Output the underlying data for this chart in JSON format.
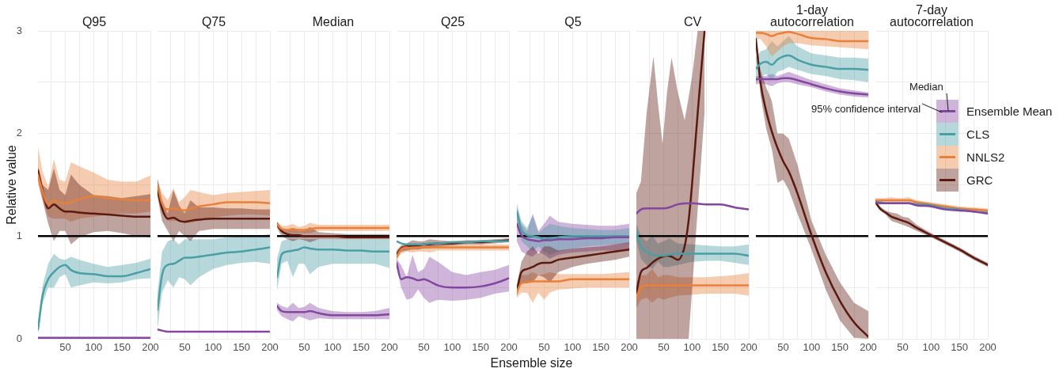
{
  "chart_data": [
    {
      "type": "line",
      "title": "Q95",
      "ylabel": "Relative value",
      "x": [
        2,
        10,
        20,
        30,
        40,
        50,
        60,
        75,
        100,
        125,
        150,
        175,
        200
      ],
      "xlim": [
        2,
        200
      ],
      "xticks": [
        {
          "value": 25,
          "label": null
        },
        50,
        {
          "value": 75,
          "label": null
        },
        100,
        {
          "value": 125,
          "label": null
        },
        150,
        {
          "value": 175,
          "label": null
        },
        200
      ],
      "ylim": [
        0,
        3
      ],
      "yticks": [
        0,
        {
          "value": 0.5,
          "label": null
        },
        1,
        {
          "value": 1.5,
          "label": null
        },
        2,
        {
          "value": 2.5,
          "label": null
        },
        3
      ],
      "grid": true,
      "ref_lines": [
        {
          "axis": "y",
          "value": 1,
          "color": "#000000"
        }
      ],
      "series": [
        {
          "color": "#8447a0",
          "values": [
            0.01,
            0.01,
            0.01,
            0.01,
            0.01,
            0.01,
            0.01,
            0.01,
            0.01,
            0.01,
            0.01,
            0.01,
            0.01
          ]
        },
        {
          "color": "#4a9ea6",
          "values": [
            0.09,
            0.42,
            0.58,
            0.65,
            0.7,
            0.72,
            0.67,
            0.64,
            0.63,
            0.61,
            0.61,
            0.64,
            0.68
          ],
          "lower": [
            0.04,
            0.34,
            0.5,
            0.5,
            0.6,
            0.63,
            0.5,
            0.52,
            0.55,
            0.54,
            0.55,
            0.58,
            0.59
          ],
          "upper": [
            0.14,
            0.52,
            0.73,
            0.83,
            0.78,
            0.77,
            0.8,
            0.77,
            0.73,
            0.7,
            0.72,
            0.74,
            0.78
          ]
        },
        {
          "color": "#e8803a",
          "values": [
            1.6,
            1.44,
            1.31,
            1.35,
            1.33,
            1.32,
            1.33,
            1.36,
            1.39,
            1.37,
            1.36,
            1.35,
            1.35
          ],
          "lower": [
            1.5,
            1.35,
            1.19,
            1.17,
            1.17,
            1.17,
            1.14,
            1.17,
            1.19,
            1.21,
            1.22,
            1.22,
            1.24
          ],
          "upper": [
            1.87,
            1.63,
            1.48,
            1.75,
            1.55,
            1.53,
            1.72,
            1.68,
            1.62,
            1.55,
            1.53,
            1.53,
            1.59
          ]
        },
        {
          "color": "#5c1a0f",
          "values": [
            1.64,
            1.45,
            1.27,
            1.31,
            1.27,
            1.24,
            1.24,
            1.23,
            1.22,
            1.21,
            1.2,
            1.19,
            1.19
          ],
          "lower": [
            1.55,
            1.35,
            1.12,
            0.95,
            1.05,
            1.05,
            0.92,
            0.99,
            1.04,
            1.05,
            1.03,
            1.0,
            0.99
          ],
          "upper": [
            1.68,
            1.5,
            1.45,
            1.66,
            1.45,
            1.4,
            1.6,
            1.5,
            1.4,
            1.39,
            1.37,
            1.39,
            1.41
          ]
        }
      ]
    },
    {
      "type": "line",
      "title": "Q75",
      "tick_labels": "x",
      "x": [
        2,
        10,
        20,
        30,
        40,
        50,
        60,
        75,
        100,
        125,
        150,
        175,
        200
      ],
      "xlim": [
        2,
        200
      ],
      "xticks": [
        {
          "value": 25,
          "label": null
        },
        50,
        {
          "value": 75,
          "label": null
        },
        100,
        {
          "value": 125,
          "label": null
        },
        150,
        {
          "value": 175,
          "label": null
        },
        200
      ],
      "ylim": [
        0,
        3
      ],
      "yticks": [
        0,
        {
          "value": 0.5,
          "label": null
        },
        1,
        {
          "value": 1.5,
          "label": null
        },
        2,
        {
          "value": 2.5,
          "label": null
        },
        3
      ],
      "grid": true,
      "ref_lines": [
        {
          "axis": "y",
          "value": 1,
          "color": "#000000"
        }
      ],
      "series": [
        {
          "color": "#8447a0",
          "values": [
            0.09,
            0.08,
            0.07,
            0.07,
            0.07,
            0.07,
            0.07,
            0.07,
            0.07,
            0.07,
            0.07,
            0.07,
            0.07
          ]
        },
        {
          "color": "#4a9ea6",
          "values": [
            0.28,
            0.62,
            0.72,
            0.73,
            0.76,
            0.79,
            0.79,
            0.8,
            0.82,
            0.84,
            0.85,
            0.87,
            0.89
          ],
          "lower": [
            0.1,
            0.45,
            0.57,
            0.5,
            0.6,
            0.58,
            0.52,
            0.6,
            0.68,
            0.72,
            0.74,
            0.75,
            0.73
          ],
          "upper": [
            0.45,
            0.85,
            0.95,
            0.97,
            0.92,
            0.97,
            0.97,
            0.97,
            0.97,
            0.99,
            1.0,
            1.0,
            1.02
          ]
        },
        {
          "color": "#e8803a",
          "values": [
            1.5,
            1.32,
            1.26,
            1.27,
            1.26,
            1.25,
            1.27,
            1.29,
            1.31,
            1.33,
            1.33,
            1.33,
            1.32
          ],
          "lower": [
            1.4,
            1.22,
            1.15,
            1.15,
            1.15,
            1.13,
            1.13,
            1.15,
            1.18,
            1.2,
            1.21,
            1.21,
            1.2
          ],
          "upper": [
            1.55,
            1.42,
            1.35,
            1.47,
            1.33,
            1.38,
            1.45,
            1.43,
            1.4,
            1.42,
            1.43,
            1.44,
            1.45
          ]
        },
        {
          "color": "#5c1a0f",
          "values": [
            1.45,
            1.27,
            1.17,
            1.18,
            1.15,
            1.14,
            1.15,
            1.16,
            1.17,
            1.17,
            1.17,
            1.17,
            1.17
          ],
          "lower": [
            1.38,
            1.15,
            1.05,
            0.95,
            1.05,
            1.0,
            0.95,
            1.05,
            1.07,
            1.07,
            1.07,
            1.07,
            1.07
          ],
          "upper": [
            1.56,
            1.35,
            1.22,
            1.45,
            1.3,
            1.22,
            1.35,
            1.28,
            1.28,
            1.27,
            1.27,
            1.26,
            1.26
          ]
        }
      ]
    },
    {
      "type": "line",
      "title": "Median",
      "tick_labels": "x",
      "x": [
        2,
        10,
        20,
        30,
        40,
        50,
        60,
        75,
        100,
        125,
        150,
        175,
        200
      ],
      "xlim": [
        2,
        200
      ],
      "xticks": [
        {
          "value": 25,
          "label": null
        },
        50,
        {
          "value": 75,
          "label": null
        },
        100,
        {
          "value": 125,
          "label": null
        },
        150,
        {
          "value": 175,
          "label": null
        },
        200
      ],
      "ylim": [
        0,
        3
      ],
      "yticks": [
        0,
        {
          "value": 0.5,
          "label": null
        },
        1,
        {
          "value": 1.5,
          "label": null
        },
        2,
        {
          "value": 2.5,
          "label": null
        },
        3
      ],
      "grid": true,
      "ref_lines": [
        {
          "axis": "y",
          "value": 1,
          "color": "#000000"
        }
      ],
      "series": [
        {
          "color": "#8447a0",
          "values": [
            0.32,
            0.27,
            0.26,
            0.26,
            0.26,
            0.26,
            0.27,
            0.25,
            0.23,
            0.23,
            0.23,
            0.23,
            0.24
          ],
          "lower": [
            0.28,
            0.22,
            0.19,
            0.17,
            0.22,
            0.2,
            0.18,
            0.2,
            0.19,
            0.19,
            0.19,
            0.19,
            0.19
          ],
          "upper": [
            0.35,
            0.32,
            0.3,
            0.35,
            0.3,
            0.31,
            0.35,
            0.3,
            0.27,
            0.26,
            0.26,
            0.27,
            0.3
          ]
        },
        {
          "color": "#4a9ea6",
          "values": [
            0.6,
            0.82,
            0.85,
            0.86,
            0.87,
            0.89,
            0.88,
            0.87,
            0.87,
            0.86,
            0.86,
            0.85,
            0.85
          ],
          "lower": [
            0.47,
            0.73,
            0.76,
            0.6,
            0.73,
            0.73,
            0.63,
            0.7,
            0.73,
            0.73,
            0.73,
            0.73,
            0.69
          ],
          "upper": [
            0.78,
            0.95,
            0.97,
            0.97,
            0.97,
            0.97,
            0.97,
            0.97,
            0.97,
            0.97,
            0.97,
            0.97,
            0.97
          ]
        },
        {
          "color": "#e8803a",
          "values": [
            1.12,
            1.07,
            1.06,
            1.07,
            1.06,
            1.06,
            1.07,
            1.08,
            1.08,
            1.08,
            1.08,
            1.08,
            1.08
          ],
          "lower": [
            1.09,
            1.04,
            1.03,
            1.03,
            1.03,
            1.03,
            1.03,
            1.05,
            1.05,
            1.05,
            1.05,
            1.05,
            1.05
          ],
          "upper": [
            1.14,
            1.1,
            1.1,
            1.12,
            1.09,
            1.1,
            1.13,
            1.11,
            1.11,
            1.11,
            1.11,
            1.11,
            1.11
          ]
        },
        {
          "color": "#5c1a0f",
          "values": [
            1.12,
            1.05,
            1.02,
            1.01,
            1.01,
            1.0,
            1.0,
            1.0,
            1.0,
            0.99,
            0.99,
            0.99,
            0.99
          ],
          "lower": [
            1.08,
            1.0,
            0.97,
            0.95,
            0.97,
            0.96,
            0.94,
            0.97,
            0.97,
            0.97,
            0.97,
            0.97,
            0.97
          ],
          "upper": [
            1.14,
            1.08,
            1.06,
            1.08,
            1.05,
            1.05,
            1.09,
            1.04,
            1.03,
            1.02,
            1.02,
            1.02,
            1.02
          ]
        }
      ]
    },
    {
      "type": "line",
      "title": "Q25",
      "tick_labels": "x",
      "x": [
        2,
        10,
        20,
        30,
        40,
        50,
        60,
        75,
        100,
        125,
        150,
        175,
        200
      ],
      "xlim": [
        2,
        200
      ],
      "xticks": [
        {
          "value": 25,
          "label": null
        },
        50,
        {
          "value": 75,
          "label": null
        },
        100,
        {
          "value": 125,
          "label": null
        },
        150,
        {
          "value": 175,
          "label": null
        },
        200
      ],
      "ylim": [
        0,
        3
      ],
      "yticks": [
        0,
        {
          "value": 0.5,
          "label": null
        },
        1,
        {
          "value": 1.5,
          "label": null
        },
        2,
        {
          "value": 2.5,
          "label": null
        },
        3
      ],
      "grid": true,
      "ref_lines": [
        {
          "axis": "y",
          "value": 1,
          "color": "#000000"
        }
      ],
      "series": [
        {
          "color": "#8447a0",
          "values": [
            0.74,
            0.58,
            0.6,
            0.59,
            0.57,
            0.58,
            0.56,
            0.52,
            0.5,
            0.5,
            0.51,
            0.54,
            0.59
          ],
          "lower": [
            0.7,
            0.5,
            0.38,
            0.4,
            0.48,
            0.4,
            0.35,
            0.38,
            0.37,
            0.38,
            0.4,
            0.44,
            0.46
          ],
          "upper": [
            0.78,
            0.72,
            0.6,
            0.82,
            0.65,
            0.68,
            0.8,
            0.75,
            0.65,
            0.62,
            0.65,
            0.67,
            0.72
          ]
        },
        {
          "color": "#4a9ea6",
          "values": [
            0.95,
            0.93,
            0.92,
            0.92,
            0.92,
            0.92,
            0.93,
            0.93,
            0.94,
            0.94,
            0.95,
            0.95,
            0.95
          ]
        },
        {
          "color": "#e8803a",
          "values": [
            0.8,
            0.87,
            0.89,
            0.88,
            0.89,
            0.89,
            0.89,
            0.89,
            0.89,
            0.89,
            0.89,
            0.89,
            0.89
          ],
          "lower": [
            0.76,
            0.83,
            0.85,
            0.84,
            0.85,
            0.85,
            0.84,
            0.86,
            0.86,
            0.86,
            0.86,
            0.86,
            0.86
          ],
          "upper": [
            0.84,
            0.9,
            0.92,
            0.92,
            0.92,
            0.92,
            0.93,
            0.92,
            0.92,
            0.92,
            0.92,
            0.92,
            0.92
          ]
        },
        {
          "color": "#5c1a0f",
          "values": [
            0.82,
            0.88,
            0.9,
            0.91,
            0.91,
            0.92,
            0.92,
            0.93,
            0.93,
            0.94,
            0.94,
            0.95,
            0.96
          ],
          "lower": [
            0.78,
            0.85,
            0.86,
            0.87,
            0.87,
            0.88,
            0.88,
            0.9,
            0.91,
            0.92,
            0.92,
            0.93,
            0.94
          ],
          "upper": [
            0.86,
            0.91,
            0.93,
            0.96,
            0.95,
            0.95,
            0.97,
            0.96,
            0.95,
            0.96,
            0.96,
            0.97,
            0.98
          ]
        }
      ]
    },
    {
      "type": "line",
      "title": "Q5",
      "xlabel": "Ensemble size",
      "tick_labels": "x",
      "x": [
        2,
        10,
        20,
        30,
        40,
        50,
        60,
        75,
        100,
        125,
        150,
        175,
        200
      ],
      "xlim": [
        2,
        200
      ],
      "xticks": [
        {
          "value": 25,
          "label": null
        },
        50,
        {
          "value": 75,
          "label": null
        },
        100,
        {
          "value": 125,
          "label": null
        },
        150,
        {
          "value": 175,
          "label": null
        },
        200
      ],
      "ylim": [
        0,
        3
      ],
      "yticks": [
        0,
        {
          "value": 0.5,
          "label": null
        },
        1,
        {
          "value": 1.5,
          "label": null
        },
        2,
        {
          "value": 2.5,
          "label": null
        },
        3
      ],
      "grid": true,
      "ref_lines": [
        {
          "axis": "y",
          "value": 1,
          "color": "#000000"
        }
      ],
      "series": [
        {
          "color": "#8447a0",
          "values": [
            1.12,
            1.01,
            0.97,
            0.96,
            0.95,
            0.96,
            0.96,
            0.97,
            0.97,
            0.98,
            0.98,
            0.99,
            0.99
          ],
          "lower": [
            0.95,
            0.85,
            0.82,
            0.8,
            0.85,
            0.82,
            0.78,
            0.82,
            0.84,
            0.85,
            0.86,
            0.86,
            0.86
          ],
          "upper": [
            1.28,
            1.12,
            1.05,
            1.22,
            1.05,
            1.12,
            1.2,
            1.14,
            1.12,
            1.11,
            1.1,
            1.1,
            1.12
          ]
        },
        {
          "color": "#4a9ea6",
          "values": [
            1.24,
            1.06,
            1.01,
            1.0,
            0.99,
            0.97,
            0.98,
            0.99,
            1.0,
            1.0,
            1.0,
            1.0,
            1.0
          ],
          "lower": [
            1.15,
            0.95,
            0.9,
            0.85,
            0.9,
            0.85,
            0.82,
            0.85,
            0.88,
            0.9,
            0.91,
            0.92,
            0.93
          ],
          "upper": [
            1.32,
            1.15,
            1.08,
            1.2,
            1.03,
            1.08,
            1.12,
            1.1,
            1.08,
            1.07,
            1.06,
            1.06,
            1.08
          ]
        },
        {
          "color": "#e8803a",
          "values": [
            0.46,
            0.54,
            0.55,
            0.56,
            0.56,
            0.56,
            0.56,
            0.56,
            0.58,
            0.58,
            0.58,
            0.58,
            0.58
          ],
          "lower": [
            0.4,
            0.45,
            0.45,
            0.35,
            0.45,
            0.38,
            0.45,
            0.48,
            0.49,
            0.5,
            0.5,
            0.5,
            0.5
          ],
          "upper": [
            0.5,
            0.62,
            0.62,
            0.65,
            0.62,
            0.63,
            0.65,
            0.63,
            0.63,
            0.63,
            0.63,
            0.64,
            0.65
          ]
        },
        {
          "color": "#5c1a0f",
          "values": [
            0.47,
            0.65,
            0.68,
            0.7,
            0.73,
            0.74,
            0.74,
            0.77,
            0.79,
            0.81,
            0.83,
            0.85,
            0.87
          ],
          "lower": [
            0.42,
            0.55,
            0.55,
            0.55,
            0.62,
            0.6,
            0.55,
            0.65,
            0.7,
            0.73,
            0.75,
            0.77,
            0.8
          ],
          "upper": [
            0.52,
            0.75,
            0.85,
            0.9,
            0.83,
            0.9,
            0.9,
            0.86,
            0.88,
            0.89,
            0.9,
            0.92,
            0.94
          ]
        }
      ]
    },
    {
      "type": "line",
      "title": "CV",
      "tick_labels": "x",
      "x": [
        2,
        10,
        20,
        30,
        40,
        50,
        60,
        75,
        100,
        125,
        150,
        175,
        200
      ],
      "xlim": [
        2,
        200
      ],
      "xticks": [
        {
          "value": 25,
          "label": null
        },
        50,
        {
          "value": 75,
          "label": null
        },
        100,
        {
          "value": 125,
          "label": null
        },
        150,
        {
          "value": 175,
          "label": null
        },
        200
      ],
      "ylim": [
        0,
        3
      ],
      "yticks": [
        0,
        {
          "value": 0.5,
          "label": null
        },
        1,
        {
          "value": 1.5,
          "label": null
        },
        2,
        {
          "value": 2.5,
          "label": null
        },
        3
      ],
      "grid": true,
      "ref_lines": [
        {
          "axis": "y",
          "value": 1,
          "color": "#000000"
        }
      ],
      "series": [
        {
          "color": "#8447a0",
          "values": [
            1.22,
            1.26,
            1.27,
            1.27,
            1.27,
            1.27,
            1.28,
            1.31,
            1.32,
            1.31,
            1.31,
            1.28,
            1.26
          ]
        },
        {
          "color": "#4a9ea6",
          "values": [
            1.04,
            0.9,
            0.85,
            0.82,
            0.81,
            0.81,
            0.82,
            0.83,
            0.83,
            0.83,
            0.83,
            0.83,
            0.81
          ],
          "lower": [
            0.95,
            0.78,
            0.72,
            0.68,
            0.75,
            0.7,
            0.7,
            0.72,
            0.75,
            0.76,
            0.76,
            0.74,
            0.72
          ],
          "upper": [
            1.12,
            1.0,
            0.95,
            1.0,
            0.93,
            0.95,
            0.98,
            0.93,
            0.92,
            0.91,
            0.9,
            0.9,
            0.92
          ]
        },
        {
          "color": "#e8803a",
          "values": [
            0.4,
            0.5,
            0.52,
            0.52,
            0.52,
            0.52,
            0.52,
            0.52,
            0.52,
            0.52,
            0.52,
            0.52,
            0.52
          ],
          "lower": [
            0.3,
            0.38,
            0.4,
            0.35,
            0.4,
            0.38,
            0.4,
            0.42,
            0.43,
            0.44,
            0.44,
            0.44,
            0.42
          ],
          "upper": [
            0.55,
            0.62,
            0.62,
            0.68,
            0.6,
            0.62,
            0.62,
            0.6,
            0.6,
            0.6,
            0.61,
            0.62,
            0.64
          ]
        },
        {
          "color": "#5c1a0f",
          "x": [
            2,
            10,
            20,
            32,
            40,
            48,
            56,
            64,
            75,
            87,
            94,
            100,
            110,
            122
          ],
          "values": [
            0.45,
            0.65,
            0.69,
            0.75,
            0.78,
            0.8,
            0.81,
            0.8,
            0.77,
            0.9,
            1.15,
            1.5,
            2.2,
            2.99
          ],
          "lower": [
            0,
            0,
            0,
            0,
            0,
            0,
            0,
            0,
            0,
            0,
            0,
            0.47,
            1.26,
            2.2
          ],
          "upper": [
            1.42,
            1.53,
            2.2,
            2.75,
            2.3,
            1.9,
            2.4,
            2.74,
            2.4,
            2.13,
            2.35,
            2.55,
            3,
            3
          ]
        }
      ]
    },
    {
      "type": "line",
      "title": "1-day autocorrelation",
      "tick_labels": "x",
      "x": [
        2,
        10,
        20,
        30,
        40,
        50,
        60,
        75,
        100,
        125,
        150,
        175,
        200
      ],
      "xlim": [
        2,
        200
      ],
      "xticks": [
        {
          "value": 25,
          "label": null
        },
        50,
        {
          "value": 75,
          "label": null
        },
        100,
        {
          "value": 125,
          "label": null
        },
        150,
        {
          "value": 175,
          "label": null
        },
        200
      ],
      "ylim": [
        0,
        3
      ],
      "yticks": [
        0,
        {
          "value": 0.5,
          "label": null
        },
        1,
        {
          "value": 1.5,
          "label": null
        },
        2,
        {
          "value": 2.5,
          "label": null
        },
        3
      ],
      "grid": true,
      "ref_lines": [
        {
          "axis": "y",
          "value": 1,
          "color": "#000000"
        }
      ],
      "series": [
        {
          "color": "#8447a0",
          "values": [
            2.53,
            2.53,
            2.53,
            2.53,
            2.53,
            2.54,
            2.54,
            2.52,
            2.48,
            2.44,
            2.41,
            2.39,
            2.38
          ],
          "lower": [
            2.48,
            2.49,
            2.48,
            2.46,
            2.49,
            2.5,
            2.5,
            2.48,
            2.45,
            2.41,
            2.38,
            2.36,
            2.35
          ],
          "upper": [
            2.56,
            2.56,
            2.56,
            2.58,
            2.56,
            2.58,
            2.6,
            2.57,
            2.52,
            2.48,
            2.44,
            2.42,
            2.4
          ]
        },
        {
          "color": "#4a9ea6",
          "values": [
            2.63,
            2.68,
            2.7,
            2.67,
            2.72,
            2.75,
            2.76,
            2.72,
            2.67,
            2.65,
            2.63,
            2.63,
            2.62
          ],
          "lower": [
            2.5,
            2.55,
            2.58,
            2.52,
            2.6,
            2.62,
            2.65,
            2.62,
            2.58,
            2.56,
            2.53,
            2.52,
            2.5
          ],
          "upper": [
            2.75,
            2.8,
            2.82,
            2.9,
            2.85,
            2.9,
            2.95,
            2.85,
            2.78,
            2.76,
            2.74,
            2.74,
            2.73
          ]
        },
        {
          "color": "#e8803a",
          "values": [
            2.98,
            2.98,
            2.97,
            2.95,
            2.97,
            2.98,
            2.99,
            2.97,
            2.93,
            2.92,
            2.9,
            2.9,
            2.9
          ],
          "lower": [
            2.92,
            2.92,
            2.85,
            2.75,
            2.8,
            2.85,
            2.88,
            2.88,
            2.86,
            2.85,
            2.84,
            2.83,
            2.82
          ],
          "upper": [
            3,
            3,
            3,
            3,
            3,
            3,
            3,
            3,
            3,
            3,
            3,
            3,
            3
          ]
        },
        {
          "color": "#5c1a0f",
          "values": [
            2.92,
            2.5,
            2.22,
            2.02,
            1.86,
            1.73,
            1.63,
            1.42,
            1.01,
            0.65,
            0.37,
            0.16,
            0.02
          ],
          "lower": [
            2.88,
            2.38,
            2.05,
            1.85,
            1.52,
            1.55,
            1.45,
            1.22,
            0.87,
            0.48,
            0.18,
            0.01,
            0
          ],
          "upper": [
            2.95,
            2.62,
            2.45,
            2.32,
            2.0,
            2.0,
            1.95,
            1.7,
            1.15,
            0.82,
            0.55,
            0.35,
            0.27
          ]
        }
      ]
    },
    {
      "type": "line",
      "title": "7-day autocorrelation",
      "tick_labels": "x",
      "legend": "right",
      "annotations": [
        "Median",
        "95% confidence interval"
      ],
      "x": [
        2,
        10,
        20,
        30,
        40,
        50,
        60,
        75,
        100,
        125,
        150,
        175,
        200
      ],
      "xlim": [
        2,
        200
      ],
      "xticks": [
        {
          "value": 25,
          "label": null
        },
        50,
        {
          "value": 75,
          "label": null
        },
        100,
        {
          "value": 125,
          "label": null
        },
        150,
        {
          "value": 175,
          "label": null
        },
        200
      ],
      "ylim": [
        0,
        3
      ],
      "yticks": [
        0,
        {
          "value": 0.5,
          "label": null
        },
        1,
        {
          "value": 1.5,
          "label": null
        },
        2,
        {
          "value": 2.5,
          "label": null
        },
        3
      ],
      "grid": true,
      "ref_lines": [
        {
          "axis": "y",
          "value": 1,
          "color": "#000000"
        }
      ],
      "series": [
        {
          "name": "Ensemble Mean",
          "color": "#8447a0",
          "values": [
            1.33,
            1.32,
            1.32,
            1.32,
            1.32,
            1.32,
            1.32,
            1.3,
            1.29,
            1.26,
            1.25,
            1.24,
            1.22
          ]
        },
        {
          "name": "CLS",
          "color": "#4a9ea6",
          "values": [
            1.33,
            1.33,
            1.32,
            1.32,
            1.32,
            1.32,
            1.32,
            1.31,
            1.3,
            1.27,
            1.26,
            1.24,
            1.23
          ]
        },
        {
          "name": "NNLS2",
          "color": "#e8803a",
          "values": [
            1.35,
            1.35,
            1.35,
            1.35,
            1.35,
            1.35,
            1.35,
            1.33,
            1.31,
            1.29,
            1.27,
            1.26,
            1.25
          ],
          "lower": [
            1.33,
            1.33,
            1.33,
            1.33,
            1.33,
            1.33,
            1.33,
            1.31,
            1.29,
            1.27,
            1.25,
            1.24,
            1.23
          ],
          "upper": [
            1.37,
            1.37,
            1.37,
            1.38,
            1.37,
            1.37,
            1.38,
            1.35,
            1.33,
            1.31,
            1.29,
            1.28,
            1.27
          ]
        },
        {
          "name": "GRC",
          "color": "#5c1a0f",
          "values": [
            1.33,
            1.27,
            1.23,
            1.19,
            1.17,
            1.15,
            1.13,
            1.08,
            1.01,
            0.94,
            0.87,
            0.79,
            0.72
          ],
          "lower": [
            1.32,
            1.25,
            1.21,
            1.15,
            1.13,
            1.11,
            1.09,
            1.05,
            0.99,
            0.92,
            0.85,
            0.77,
            0.7
          ],
          "upper": [
            1.35,
            1.29,
            1.25,
            1.23,
            1.22,
            1.19,
            1.18,
            1.11,
            1.03,
            0.96,
            0.89,
            0.81,
            0.74
          ]
        }
      ]
    }
  ]
}
